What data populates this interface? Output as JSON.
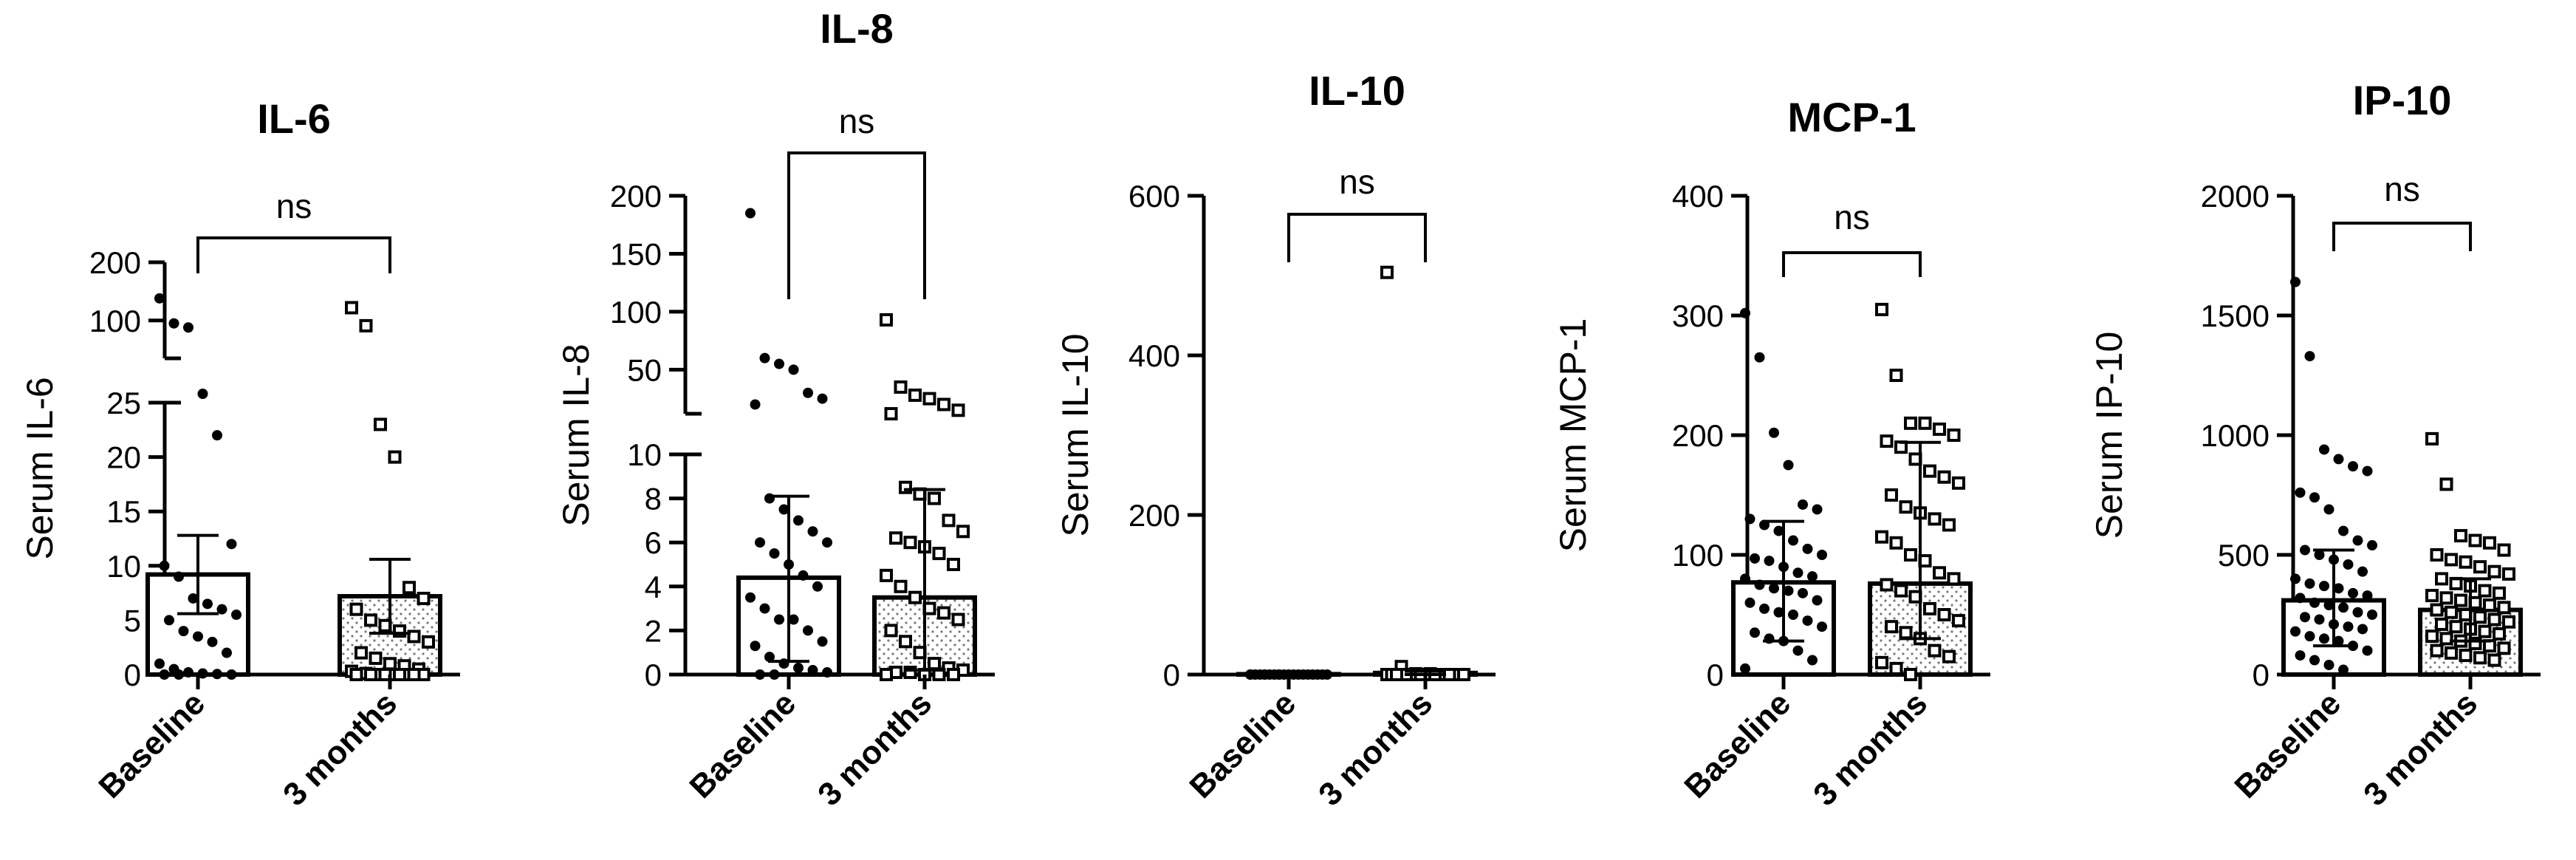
{
  "colors": {
    "ink": "#000000",
    "background": "#ffffff",
    "stipple": "#7a7a7a"
  },
  "chart_data": [
    {
      "type": "bar",
      "title": "IL-6",
      "ylabel": "Serum IL-6",
      "categories": [
        "Baseline",
        "3 months"
      ],
      "sig_label": "ns",
      "axis_break": {
        "lower": [
          0,
          25
        ],
        "upper": [
          35,
          200
        ]
      },
      "lower_ticks": [
        0,
        5,
        10,
        15,
        20,
        25
      ],
      "upper_ticks": [
        100,
        200
      ],
      "series": [
        {
          "mean": 9.2,
          "err_low": 5.6,
          "err_high": 12.8,
          "fill": "open",
          "points": [
            138,
            95,
            88,
            27,
            22,
            12,
            10,
            9,
            7,
            6.5,
            6,
            5.5,
            5,
            4,
            3.5,
            3,
            2,
            1,
            0.5,
            0.2,
            0.1,
            0.05,
            0,
            0,
            0
          ]
        },
        {
          "mean": 7.2,
          "err_low": 3.8,
          "err_high": 10.6,
          "fill": "stippled",
          "points": [
            122,
            91,
            23,
            20,
            8,
            7,
            6,
            5,
            4.5,
            4,
            3.5,
            3,
            2,
            1.5,
            1,
            0.8,
            0.5,
            0.3,
            0.1,
            0,
            0,
            0,
            0,
            0,
            0,
            0,
            0,
            0
          ]
        }
      ]
    },
    {
      "type": "bar",
      "title": "IL-8",
      "ylabel": "Serum IL-8",
      "categories": [
        "Baseline",
        "3 months"
      ],
      "sig_label": "ns",
      "axis_break": {
        "lower": [
          0,
          10
        ],
        "upper": [
          12,
          200
        ]
      },
      "lower_ticks": [
        0,
        2,
        4,
        6,
        8,
        10
      ],
      "upper_ticks": [
        50,
        100,
        150,
        200
      ],
      "series": [
        {
          "mean": 4.4,
          "err_low": 0.6,
          "err_high": 8.1,
          "fill": "open",
          "points": [
            185,
            60,
            55,
            50,
            30,
            25,
            20,
            8,
            7.5,
            7,
            6.5,
            6,
            6,
            5.5,
            5,
            4.5,
            4,
            3.5,
            3,
            2.5,
            2.5,
            2,
            1.5,
            1.3,
            0.8,
            0.5,
            0.3,
            0.2,
            0.1,
            0,
            0
          ]
        },
        {
          "mean": 3.5,
          "err_low": 0.2,
          "err_high": 8.4,
          "fill": "stippled",
          "points": [
            93,
            35,
            28,
            25,
            20,
            15,
            12,
            8.5,
            8.2,
            8,
            7,
            6.5,
            6.2,
            6,
            5.8,
            5.5,
            5,
            4.5,
            4,
            3.5,
            3,
            2.8,
            2.5,
            2,
            1.5,
            1,
            0.5,
            0.3,
            0.2,
            0.1,
            0.1,
            0,
            0,
            0,
            0
          ]
        }
      ]
    },
    {
      "type": "bar",
      "title": "IL-10",
      "ylabel": "Serum IL-10",
      "categories": [
        "Baseline",
        "3 months"
      ],
      "sig_label": "ns",
      "ylim": [
        0,
        600
      ],
      "ticks": [
        0,
        200,
        400,
        600
      ],
      "series": [
        {
          "mean": 0.5,
          "err_low": 0,
          "err_high": 1,
          "fill": "open",
          "points": [
            0,
            0,
            0,
            0,
            0,
            0,
            0,
            0,
            0,
            0,
            0,
            0,
            0,
            0,
            0,
            0,
            0,
            0,
            0,
            0
          ]
        },
        {
          "mean": 2,
          "err_low": 0,
          "err_high": 4,
          "fill": "stippled",
          "points": [
            504,
            10,
            1,
            1,
            0,
            0,
            0,
            0,
            0,
            0,
            0,
            0,
            0,
            0,
            0,
            0,
            0,
            0,
            0,
            0,
            0,
            0,
            0,
            0,
            0,
            0,
            0,
            0,
            0,
            0
          ]
        }
      ]
    },
    {
      "type": "bar",
      "title": "MCP-1",
      "ylabel": "Serum MCP-1",
      "categories": [
        "Baseline",
        "3 months"
      ],
      "sig_label": "ns",
      "ylim": [
        0,
        400
      ],
      "ticks": [
        0,
        100,
        200,
        300,
        400
      ],
      "series": [
        {
          "mean": 77,
          "err_low": 28,
          "err_high": 128,
          "fill": "open",
          "points": [
            302,
            265,
            202,
            175,
            142,
            138,
            130,
            125,
            120,
            112,
            105,
            100,
            97,
            95,
            90,
            85,
            82,
            80,
            75,
            72,
            70,
            68,
            62,
            60,
            55,
            52,
            50,
            45,
            40,
            35,
            30,
            28,
            20,
            12,
            5
          ]
        },
        {
          "mean": 76,
          "err_low": 30,
          "err_high": 194,
          "fill": "stippled",
          "points": [
            305,
            250,
            210,
            210,
            205,
            200,
            195,
            190,
            180,
            170,
            165,
            160,
            150,
            140,
            135,
            130,
            125,
            115,
            110,
            100,
            95,
            85,
            80,
            75,
            70,
            65,
            55,
            50,
            45,
            40,
            35,
            30,
            20,
            15,
            10,
            5,
            0
          ]
        }
      ]
    },
    {
      "type": "bar",
      "title": "IP-10",
      "ylabel": "Serum IP-10",
      "categories": [
        "Baseline",
        "3 months"
      ],
      "sig_label": "ns",
      "ylim": [
        0,
        2000
      ],
      "ticks": [
        0,
        500,
        1000,
        1500,
        2000
      ],
      "series": [
        {
          "mean": 310,
          "err_low": 120,
          "err_high": 520,
          "fill": "open",
          "points": [
            1640,
            1330,
            940,
            900,
            870,
            850,
            760,
            740,
            690,
            600,
            560,
            540,
            520,
            500,
            480,
            460,
            430,
            400,
            380,
            370,
            360,
            340,
            330,
            320,
            300,
            290,
            280,
            260,
            250,
            240,
            230,
            210,
            200,
            190,
            180,
            160,
            150,
            140,
            120,
            100,
            80,
            60,
            40,
            20
          ]
        },
        {
          "mean": 270,
          "err_low": 140,
          "err_high": 400,
          "fill": "stippled",
          "points": [
            985,
            795,
            580,
            560,
            550,
            520,
            500,
            480,
            470,
            450,
            430,
            420,
            400,
            380,
            370,
            350,
            340,
            330,
            320,
            310,
            300,
            290,
            280,
            270,
            260,
            250,
            240,
            230,
            220,
            210,
            200,
            190,
            180,
            170,
            160,
            150,
            140,
            130,
            120,
            110,
            100,
            90,
            80,
            70,
            60
          ]
        }
      ]
    }
  ]
}
